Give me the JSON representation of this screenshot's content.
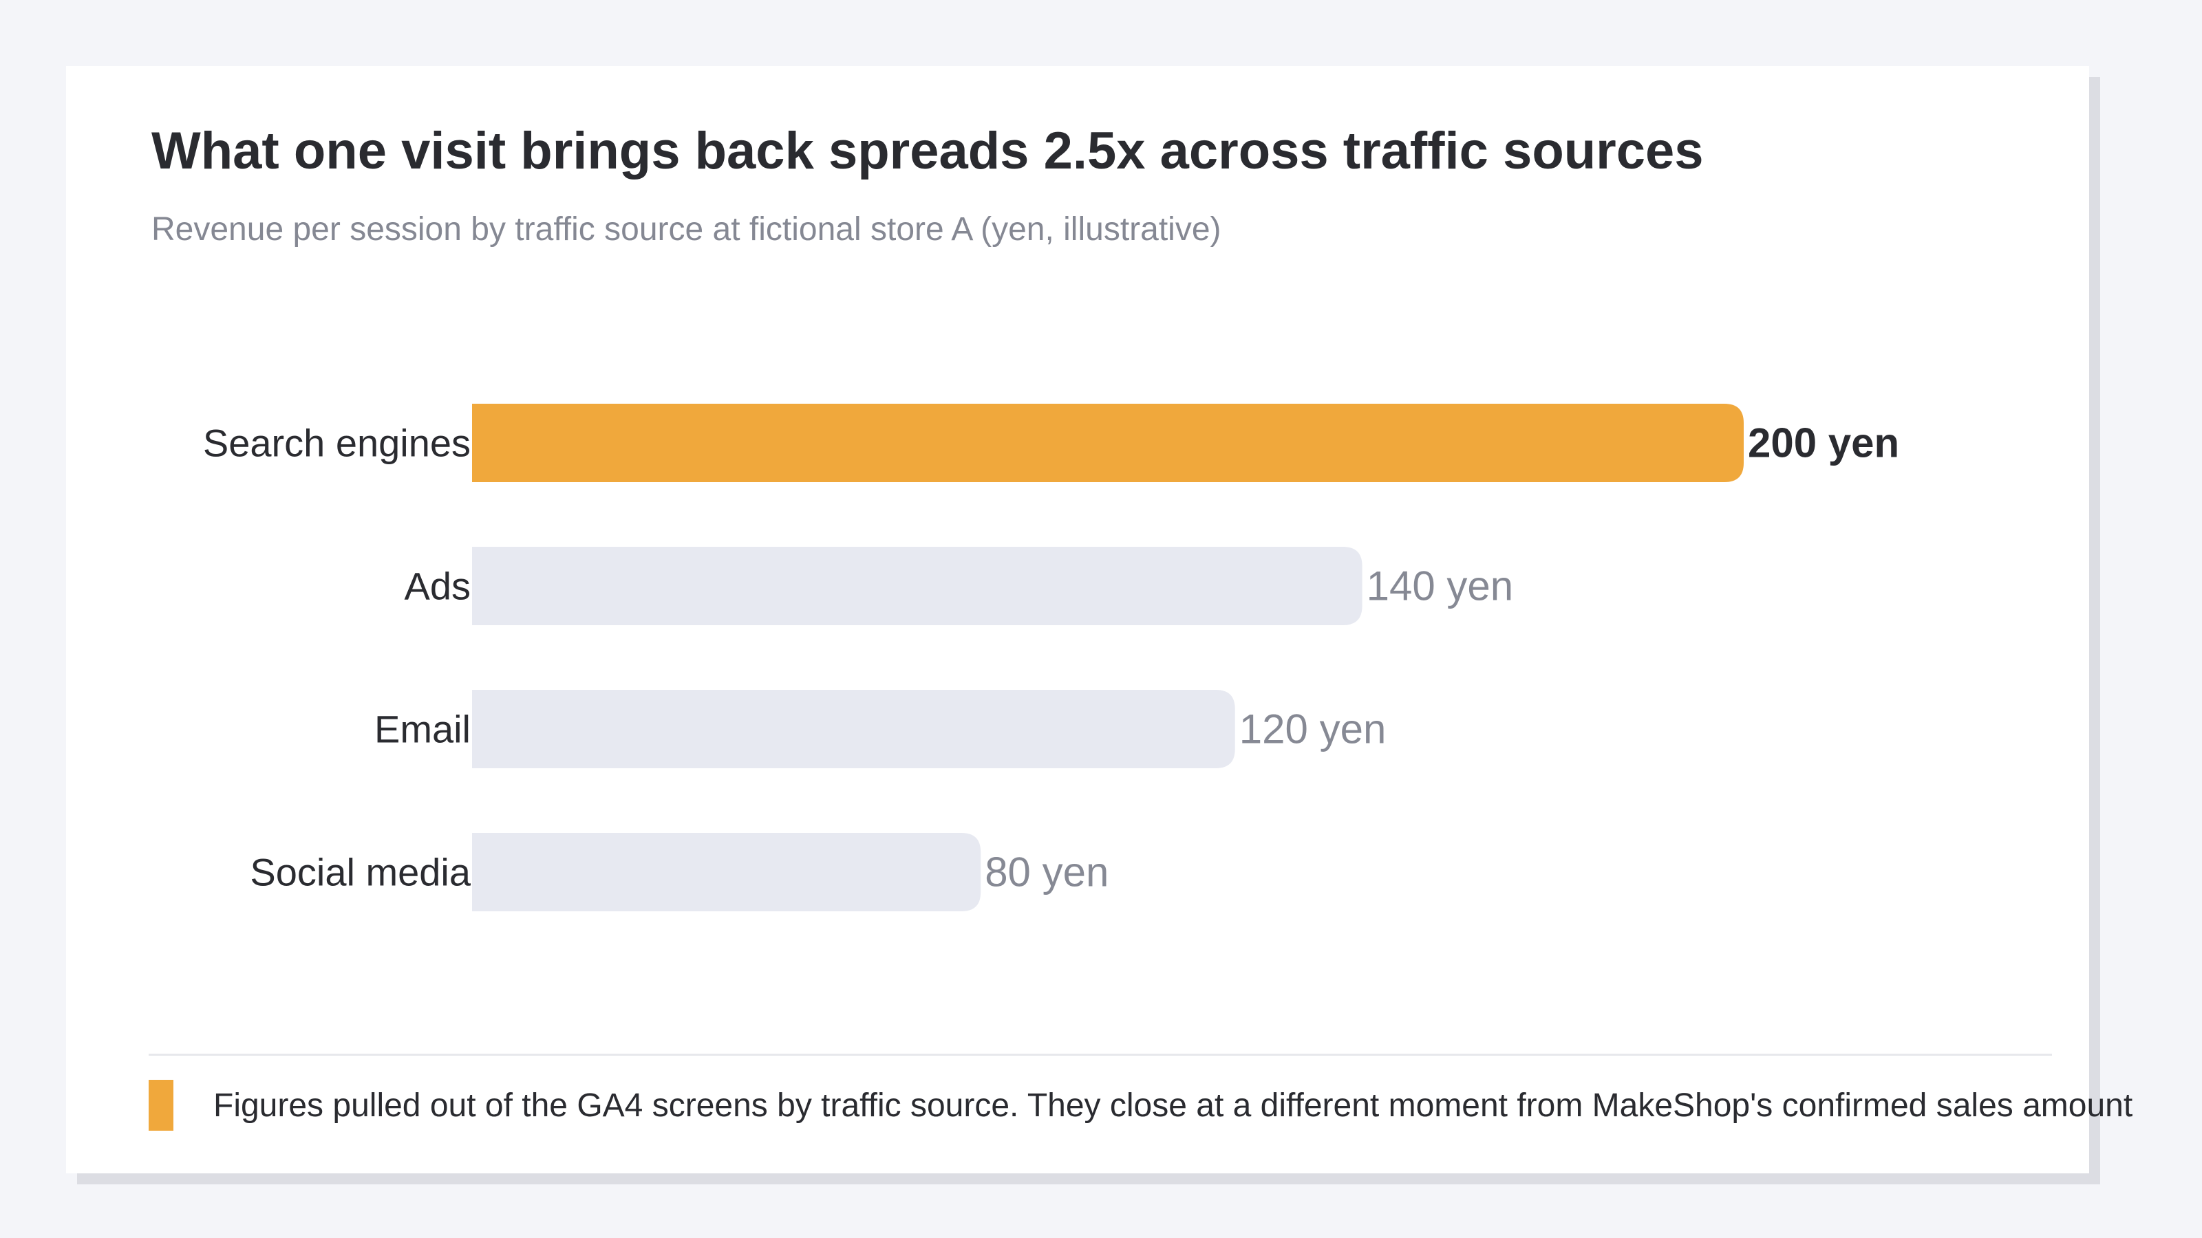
{
  "title": "What one visit brings back spreads 2.5x across traffic sources",
  "subtitle": "Revenue per session by traffic source at fictional store A (yen, illustrative)",
  "note": "Figures pulled out of the GA4 screens by traffic source. They close at a different moment from MakeShop's confirmed sales amount",
  "colors": {
    "highlight": "#f0a83c",
    "muted": "#e7e9f1",
    "note_marker": "#f0a83c"
  },
  "chart_data": {
    "type": "bar",
    "orientation": "horizontal",
    "categories": [
      "Search engines",
      "Ads",
      "Email",
      "Social media"
    ],
    "values": [
      200,
      140,
      120,
      80
    ],
    "value_labels": [
      "200 yen",
      "140 yen",
      "120 yen",
      "80 yen"
    ],
    "highlight_index": 0,
    "unit": "yen",
    "xlim": [
      0,
      200
    ],
    "grid": false,
    "legend": "none"
  }
}
